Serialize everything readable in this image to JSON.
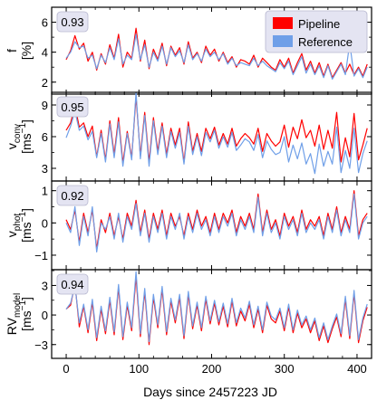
{
  "figure": {
    "xlabel": "Days since 2457223 JD",
    "x_ticks": [
      0,
      100,
      200,
      300,
      400
    ],
    "legend": {
      "placement": "top-right of first panel",
      "entries": [
        {
          "label": "Pipeline",
          "color": "#ff0000"
        },
        {
          "label": "Reference",
          "color": "#6f9fe8"
        }
      ]
    }
  },
  "chart_data": [
    {
      "type": "line",
      "id": "f",
      "ylabel_main": "f",
      "ylabel_unit": "[%]",
      "annotation": "0.93",
      "xlim": [
        -20,
        420
      ],
      "ylim": [
        1.2,
        7.0
      ],
      "yticks": [
        2,
        4,
        6
      ],
      "x": [
        0,
        6,
        12,
        18,
        24,
        30,
        36,
        42,
        48,
        54,
        60,
        66,
        72,
        78,
        84,
        90,
        96,
        102,
        108,
        114,
        120,
        126,
        132,
        138,
        144,
        150,
        156,
        162,
        168,
        174,
        180,
        186,
        192,
        198,
        204,
        210,
        216,
        222,
        228,
        234,
        240,
        246,
        252,
        258,
        264,
        270,
        276,
        282,
        288,
        294,
        300,
        306,
        312,
        318,
        324,
        330,
        336,
        342,
        348,
        354,
        360,
        366,
        372,
        378,
        384,
        390,
        396,
        402,
        408,
        414
      ],
      "series": [
        {
          "name": "Pipeline",
          "color": "#ff0000",
          "values": [
            3.5,
            4.1,
            5.1,
            4.2,
            4.6,
            3.4,
            4.0,
            2.8,
            3.9,
            3.2,
            4.5,
            3.6,
            5.2,
            3.0,
            4.0,
            3.6,
            5.6,
            3.4,
            4.8,
            2.9,
            4.2,
            3.5,
            4.6,
            3.1,
            4.4,
            3.8,
            4.3,
            3.2,
            4.7,
            3.6,
            4.0,
            3.3,
            4.4,
            3.8,
            4.2,
            3.4,
            4.0,
            3.3,
            3.7,
            3.0,
            3.5,
            3.4,
            3.2,
            3.8,
            3.0,
            3.6,
            3.3,
            3.0,
            2.8,
            3.5,
            3.0,
            3.6,
            2.6,
            3.3,
            3.9,
            2.8,
            3.4,
            2.6,
            3.3,
            2.4,
            3.2,
            2.3,
            2.8,
            3.3,
            2.6,
            3.2,
            2.5,
            3.0,
            2.4,
            3.2
          ]
        },
        {
          "name": "Reference",
          "color": "#6f9fe8",
          "values": [
            3.6,
            4.0,
            4.7,
            4.3,
            4.4,
            3.6,
            3.8,
            2.9,
            3.8,
            3.3,
            4.3,
            3.5,
            4.9,
            3.2,
            3.8,
            3.5,
            5.2,
            3.5,
            4.5,
            3.0,
            4.0,
            3.4,
            4.4,
            3.2,
            4.3,
            3.7,
            4.1,
            3.3,
            4.5,
            3.5,
            3.9,
            3.4,
            4.2,
            3.7,
            4.0,
            3.5,
            3.9,
            3.2,
            3.6,
            3.1,
            3.3,
            3.2,
            3.1,
            3.6,
            3.1,
            3.4,
            3.1,
            2.9,
            2.7,
            3.3,
            2.9,
            3.4,
            2.5,
            3.1,
            3.7,
            2.6,
            3.2,
            2.5,
            3.1,
            2.3,
            3.1,
            2.2,
            2.7,
            3.2,
            2.5,
            4.6,
            2.4,
            2.9,
            2.3,
            3.0
          ]
        }
      ]
    },
    {
      "type": "line",
      "id": "vconv",
      "ylabel_main": "v",
      "ylabel_sub": "conv",
      "ylabel_unit": "[ms",
      "ylabel_unit_sup": "−1",
      "ylabel_unit_end": "]",
      "annotation": "0.95",
      "xlim": [
        -20,
        420
      ],
      "ylim": [
        1.8,
        10.2
      ],
      "yticks": [
        3,
        6,
        9
      ],
      "x": [
        0,
        6,
        12,
        18,
        24,
        30,
        36,
        42,
        48,
        54,
        60,
        66,
        72,
        78,
        84,
        90,
        96,
        102,
        108,
        114,
        120,
        126,
        132,
        138,
        144,
        150,
        156,
        162,
        168,
        174,
        180,
        186,
        192,
        198,
        204,
        210,
        216,
        222,
        228,
        234,
        240,
        246,
        252,
        258,
        264,
        270,
        276,
        282,
        288,
        294,
        300,
        306,
        312,
        318,
        324,
        330,
        336,
        342,
        348,
        354,
        360,
        366,
        372,
        378,
        384,
        390,
        396,
        402,
        408,
        414
      ],
      "series": [
        {
          "name": "Pipeline",
          "color": "#ff0000",
          "values": [
            6.6,
            7.3,
            8.9,
            6.9,
            7.3,
            6.0,
            7.0,
            4.1,
            6.6,
            3.8,
            7.5,
            4.3,
            7.8,
            3.5,
            6.5,
            4.0,
            9.8,
            4.2,
            8.3,
            3.6,
            7.8,
            4.6,
            7.3,
            4.3,
            6.8,
            5.2,
            6.8,
            3.6,
            7.4,
            4.6,
            6.3,
            4.6,
            6.8,
            5.8,
            6.9,
            5.2,
            6.3,
            5.3,
            6.8,
            5.1,
            5.8,
            6.3,
            5.9,
            5.3,
            6.8,
            4.6,
            6.3,
            5.6,
            5.1,
            5.5,
            7.1,
            5.0,
            6.9,
            5.8,
            7.6,
            5.9,
            6.6,
            5.1,
            7.1,
            4.8,
            6.6,
            4.9,
            8.3,
            3.6,
            5.9,
            4.1,
            8.2,
            3.8,
            5.2,
            6.8
          ]
        },
        {
          "name": "Reference",
          "color": "#6f9fe8",
          "values": [
            5.9,
            7.0,
            8.4,
            6.6,
            7.0,
            5.7,
            6.5,
            4.0,
            6.3,
            3.6,
            7.2,
            4.0,
            7.4,
            3.2,
            6.3,
            3.8,
            10.2,
            3.9,
            8.0,
            3.2,
            7.5,
            4.3,
            7.0,
            4.0,
            6.5,
            4.9,
            6.4,
            3.4,
            7.0,
            4.3,
            6.0,
            4.2,
            6.4,
            5.5,
            6.6,
            4.9,
            6.0,
            5.0,
            6.4,
            4.7,
            5.2,
            5.8,
            5.5,
            4.7,
            6.2,
            4.0,
            5.6,
            4.8,
            4.3,
            4.5,
            6.0,
            3.6,
            5.2,
            3.9,
            5.4,
            3.4,
            4.4,
            2.5,
            5.3,
            3.2,
            4.6,
            3.4,
            6.9,
            2.6,
            4.7,
            3.0,
            6.8,
            2.6,
            4.4,
            5.6
          ]
        }
      ]
    },
    {
      "type": "line",
      "id": "vphot",
      "ylabel_main": "v",
      "ylabel_sub": "phot",
      "ylabel_unit": "[ms",
      "ylabel_unit_sup": "−1",
      "ylabel_unit_end": "]",
      "annotation": "0.92",
      "xlim": [
        -20,
        420
      ],
      "ylim": [
        -1.45,
        1.3
      ],
      "yticks": [
        -1,
        0,
        1
      ],
      "x": [
        0,
        6,
        12,
        18,
        24,
        30,
        36,
        42,
        48,
        54,
        60,
        66,
        72,
        78,
        84,
        90,
        96,
        102,
        108,
        114,
        120,
        126,
        132,
        138,
        144,
        150,
        156,
        162,
        168,
        174,
        180,
        186,
        192,
        198,
        204,
        210,
        216,
        222,
        228,
        234,
        240,
        246,
        252,
        258,
        264,
        270,
        276,
        282,
        288,
        294,
        300,
        306,
        312,
        318,
        324,
        330,
        336,
        342,
        348,
        354,
        360,
        366,
        372,
        378,
        384,
        390,
        396,
        402,
        408,
        414
      ],
      "series": [
        {
          "name": "Pipeline",
          "color": "#ff0000",
          "values": [
            0.1,
            -0.2,
            0.4,
            -0.6,
            0.3,
            -0.3,
            0.4,
            -0.8,
            0.1,
            -0.3,
            0.3,
            -0.4,
            0.2,
            -0.5,
            0.3,
            -0.1,
            0.7,
            -0.3,
            0.4,
            -0.5,
            0.3,
            -0.2,
            0.4,
            -0.4,
            0.3,
            -0.1,
            0.2,
            -0.4,
            0.3,
            -0.2,
            0.4,
            -0.1,
            0.2,
            -0.3,
            0.3,
            -0.2,
            0.3,
            0.0,
            0.4,
            -0.3,
            0.2,
            -0.1,
            0.3,
            -0.2,
            0.9,
            -0.3,
            0.4,
            -0.2,
            0.1,
            -0.4,
            0.3,
            -0.1,
            0.2,
            -0.3,
            0.4,
            -0.2,
            0.1,
            -0.1,
            0.2,
            -0.4,
            0.3,
            -0.2,
            0.5,
            -0.3,
            0.2,
            -0.2,
            1.0,
            -0.4,
            0.1,
            0.3
          ]
        },
        {
          "name": "Reference",
          "color": "#6f9fe8",
          "values": [
            0.0,
            -0.3,
            0.5,
            -0.7,
            0.2,
            -0.4,
            0.5,
            -0.9,
            0.0,
            -0.2,
            0.2,
            -0.5,
            0.3,
            -0.6,
            0.2,
            -0.2,
            0.6,
            -0.4,
            0.3,
            -0.6,
            0.2,
            -0.3,
            0.3,
            -0.5,
            0.2,
            -0.2,
            0.3,
            -0.5,
            0.2,
            -0.3,
            0.3,
            -0.2,
            0.1,
            -0.4,
            0.2,
            -0.3,
            0.2,
            -0.1,
            0.3,
            -0.4,
            0.1,
            -0.2,
            0.2,
            -0.3,
            0.8,
            -0.4,
            0.3,
            -0.3,
            0.0,
            -0.5,
            0.2,
            -0.2,
            0.1,
            -0.4,
            0.3,
            -0.3,
            0.0,
            -0.2,
            0.1,
            -0.5,
            0.2,
            -0.3,
            0.4,
            -0.4,
            0.1,
            -0.3,
            0.9,
            -0.5,
            0.0,
            0.2
          ]
        }
      ]
    },
    {
      "type": "line",
      "id": "rvmodel",
      "ylabel_main": "RV",
      "ylabel_sub": "model",
      "ylabel_unit": "[ms",
      "ylabel_unit_sup": "−1",
      "ylabel_unit_end": "]",
      "annotation": "0.94",
      "xlim": [
        -20,
        420
      ],
      "ylim": [
        -4.4,
        4.6
      ],
      "yticks": [
        -3,
        0,
        3
      ],
      "x": [
        0,
        6,
        12,
        18,
        24,
        30,
        36,
        42,
        48,
        54,
        60,
        66,
        72,
        78,
        84,
        90,
        96,
        102,
        108,
        114,
        120,
        126,
        132,
        138,
        144,
        150,
        156,
        162,
        168,
        174,
        180,
        186,
        192,
        198,
        204,
        210,
        216,
        222,
        228,
        234,
        240,
        246,
        252,
        258,
        264,
        270,
        276,
        282,
        288,
        294,
        300,
        306,
        312,
        318,
        324,
        330,
        336,
        342,
        348,
        354,
        360,
        366,
        372,
        378,
        384,
        390,
        396,
        402,
        408,
        414
      ],
      "series": [
        {
          "name": "Pipeline",
          "color": "#ff0000",
          "values": [
            0.6,
            1.0,
            3.2,
            -1.2,
            0.9,
            -1.8,
            1.3,
            -2.6,
            0.6,
            -1.9,
            1.5,
            -2.0,
            2.8,
            -2.5,
            1.0,
            -1.6,
            3.9,
            -2.2,
            2.4,
            -3.0,
            1.8,
            -1.3,
            2.6,
            -2.0,
            1.4,
            -0.8,
            1.8,
            -2.4,
            2.1,
            -1.4,
            1.0,
            -1.6,
            1.6,
            -0.9,
            1.2,
            -1.0,
            0.9,
            -1.2,
            1.4,
            -1.1,
            0.4,
            -0.6,
            1.1,
            -1.3,
            0.6,
            -1.8,
            1.0,
            -0.4,
            -0.8,
            0.4,
            -1.6,
            0.8,
            -1.8,
            0.2,
            -1.3,
            -0.4,
            -1.8,
            -0.6,
            -2.6,
            -1.1,
            -2.8,
            -1.4,
            -0.2,
            -2.2,
            1.6,
            -2.4,
            2.2,
            -2.8,
            -0.6,
            0.8
          ]
        },
        {
          "name": "Reference",
          "color": "#6f9fe8",
          "values": [
            0.6,
            1.2,
            3.0,
            -0.8,
            1.1,
            -1.5,
            1.6,
            -2.3,
            0.9,
            -1.6,
            1.8,
            -1.7,
            3.1,
            -2.2,
            1.3,
            -1.3,
            4.4,
            -1.9,
            2.7,
            -2.7,
            2.1,
            -1.0,
            2.9,
            -1.7,
            1.7,
            -0.5,
            2.1,
            -2.1,
            2.4,
            -1.1,
            1.3,
            -1.3,
            1.9,
            -0.6,
            1.5,
            -0.7,
            1.2,
            -0.9,
            1.7,
            -0.8,
            0.7,
            -0.3,
            1.4,
            -1.0,
            0.9,
            -1.5,
            1.3,
            -0.1,
            -0.5,
            0.7,
            -1.3,
            1.1,
            -1.5,
            0.5,
            -1.0,
            -0.1,
            -1.5,
            -0.3,
            -2.3,
            -0.8,
            -2.5,
            -1.1,
            0.1,
            -1.9,
            1.9,
            -2.1,
            2.5,
            -2.5,
            -0.3,
            1.1
          ]
        }
      ]
    }
  ]
}
